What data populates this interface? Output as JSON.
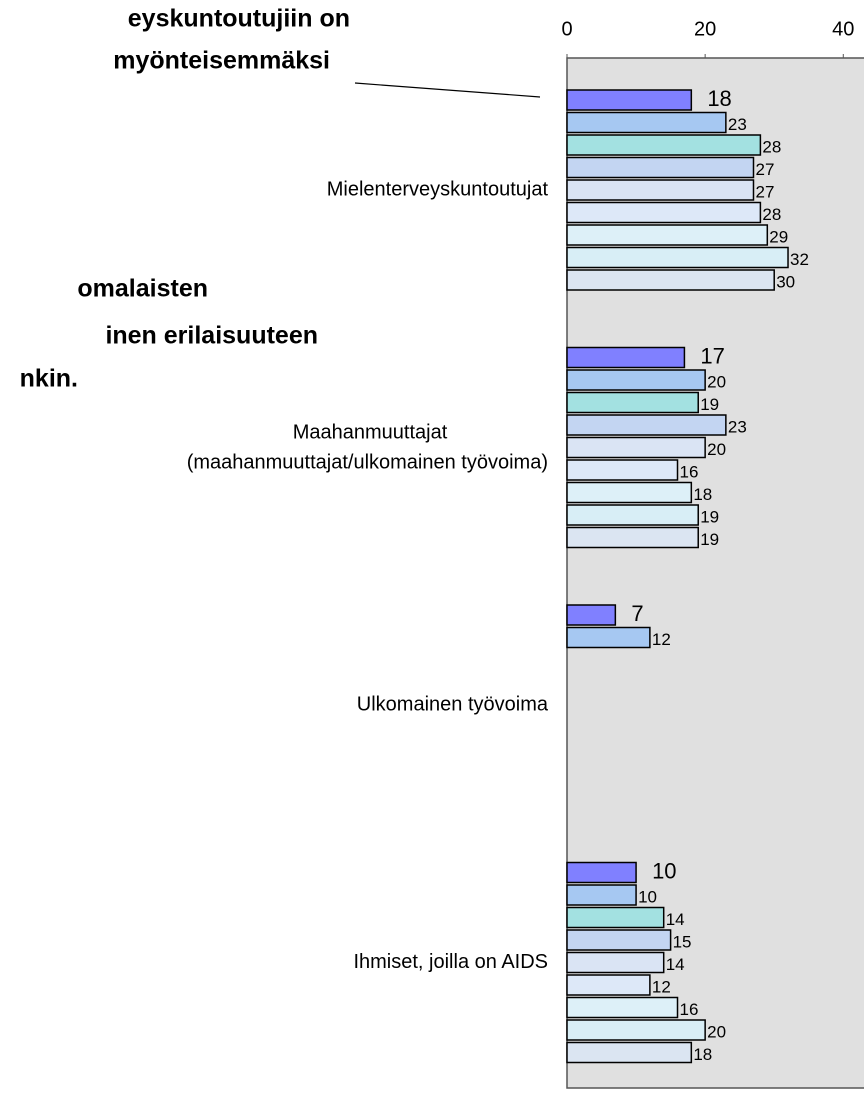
{
  "chart_data": {
    "type": "bar",
    "orientation": "horizontal",
    "annotations": [
      "eyskuntoutujiin on",
      "myönteisemmäksi",
      "omalaisten",
      "inen erilaisuuteen",
      "nkin."
    ],
    "categories": [
      "Mielenterveyskuntoutujat",
      "Maahanmuuttajat\n(maahanmuuttajat/ulkomainen työvoima)",
      "Ulkomainen työvoima",
      "Ihmiset, joilla on AIDS"
    ],
    "series": [
      {
        "color": "#8080ff",
        "values": [
          18,
          17,
          7,
          10
        ]
      },
      {
        "color": "#a6c8f2",
        "values": [
          23,
          20,
          12,
          10
        ]
      },
      {
        "color": "#a3e1e1",
        "values": [
          28,
          19,
          null,
          14
        ]
      },
      {
        "color": "#c3d5f2",
        "values": [
          27,
          23,
          null,
          15
        ]
      },
      {
        "color": "#dae4f4",
        "values": [
          27,
          20,
          null,
          14
        ]
      },
      {
        "color": "#dde8f8",
        "values": [
          28,
          16,
          null,
          12
        ]
      },
      {
        "color": "#ddf0f8",
        "values": [
          29,
          18,
          null,
          16
        ]
      },
      {
        "color": "#d8eef6",
        "values": [
          32,
          19,
          null,
          20
        ]
      },
      {
        "color": "#dbe5f2",
        "values": [
          30,
          19,
          null,
          18
        ]
      }
    ],
    "xlim": [
      0,
      43
    ],
    "xticks": [
      0,
      20,
      40
    ]
  }
}
